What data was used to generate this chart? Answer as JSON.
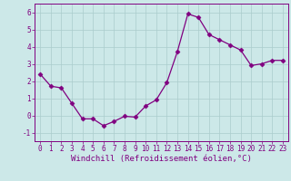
{
  "x": [
    0,
    1,
    2,
    3,
    4,
    5,
    6,
    7,
    8,
    9,
    10,
    11,
    12,
    13,
    14,
    15,
    16,
    17,
    18,
    19,
    20,
    21,
    22,
    23
  ],
  "y": [
    2.4,
    1.7,
    1.6,
    0.7,
    -0.2,
    -0.2,
    -0.6,
    -0.35,
    -0.05,
    -0.1,
    0.55,
    0.9,
    1.9,
    3.7,
    5.9,
    5.7,
    4.7,
    4.4,
    4.1,
    3.8,
    2.9,
    3.0,
    3.2,
    3.2
  ],
  "line_color": "#800080",
  "marker": "D",
  "marker_size": 2.5,
  "bg_color": "#cce8e8",
  "grid_color": "#aacccc",
  "xlabel": "Windchill (Refroidissement éolien,°C)",
  "xlim": [
    -0.5,
    23.5
  ],
  "ylim": [
    -1.5,
    6.5
  ],
  "yticks": [
    -1,
    0,
    1,
    2,
    3,
    4,
    5,
    6
  ],
  "xticks": [
    0,
    1,
    2,
    3,
    4,
    5,
    6,
    7,
    8,
    9,
    10,
    11,
    12,
    13,
    14,
    15,
    16,
    17,
    18,
    19,
    20,
    21,
    22,
    23
  ],
  "tick_fontsize": 5.5,
  "label_fontsize": 6.5
}
